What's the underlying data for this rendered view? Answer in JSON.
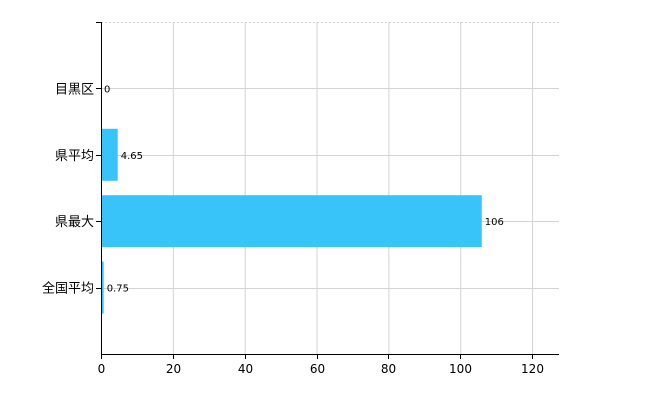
{
  "chart_data": {
    "type": "bar",
    "orientation": "horizontal",
    "categories": [
      "目黒区",
      "県平均",
      "県最大",
      "全国平均"
    ],
    "values": [
      0,
      4.65,
      106,
      0.75
    ],
    "data_labels": [
      "0",
      "4.65",
      "106",
      "0.75"
    ],
    "x_ticks": [
      0,
      20,
      40,
      60,
      80,
      100,
      120
    ],
    "xlim": [
      0,
      127.5
    ],
    "grid": true,
    "title": "",
    "xlabel": "",
    "ylabel": "",
    "colors": {
      "bar": "#38c4f8",
      "grid": "#d3d3d3",
      "axis": "#000000",
      "label": "#000000"
    }
  }
}
